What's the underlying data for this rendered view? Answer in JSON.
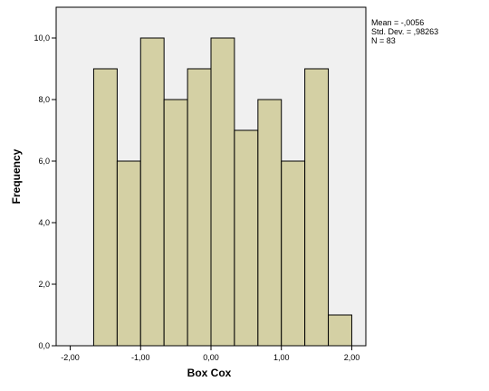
{
  "chart_data": {
    "type": "bar",
    "subtype": "histogram",
    "xlabel": "Box Cox",
    "ylabel": "Frequency",
    "xlim": [
      -2.2,
      2.2
    ],
    "ylim": [
      0,
      11
    ],
    "bar_fill": "#d4d0a4",
    "bar_stroke": "#000000",
    "plot_background": "#f0f0f0",
    "x_ticks": [
      {
        "value": -2.0,
        "label": "-2,00"
      },
      {
        "value": -1.0,
        "label": "-1,00"
      },
      {
        "value": 0.0,
        "label": "0,00"
      },
      {
        "value": 1.0,
        "label": "1,00"
      },
      {
        "value": 2.0,
        "label": "2,00"
      }
    ],
    "y_ticks": [
      {
        "value": 0,
        "label": "0,0"
      },
      {
        "value": 2,
        "label": "2,0"
      },
      {
        "value": 4,
        "label": "4,0"
      },
      {
        "value": 6,
        "label": "6,0"
      },
      {
        "value": 8,
        "label": "8,0"
      },
      {
        "value": 10,
        "label": "10,0"
      }
    ],
    "bins": [
      {
        "x0": -1.667,
        "x1": -1.333,
        "count": 9
      },
      {
        "x0": -1.333,
        "x1": -1.0,
        "count": 6
      },
      {
        "x0": -1.0,
        "x1": -0.667,
        "count": 10
      },
      {
        "x0": -0.667,
        "x1": -0.333,
        "count": 8
      },
      {
        "x0": -0.333,
        "x1": 0.0,
        "count": 9
      },
      {
        "x0": 0.0,
        "x1": 0.333,
        "count": 10
      },
      {
        "x0": 0.333,
        "x1": 0.667,
        "count": 7
      },
      {
        "x0": 0.667,
        "x1": 1.0,
        "count": 8
      },
      {
        "x0": 1.0,
        "x1": 1.333,
        "count": 6
      },
      {
        "x0": 1.333,
        "x1": 1.667,
        "count": 9
      },
      {
        "x0": 1.667,
        "x1": 2.0,
        "count": 1
      }
    ]
  },
  "stats": {
    "mean": "Mean = -,0056",
    "std_dev": "Std. Dev. = ,98263",
    "n": "N = 83"
  }
}
